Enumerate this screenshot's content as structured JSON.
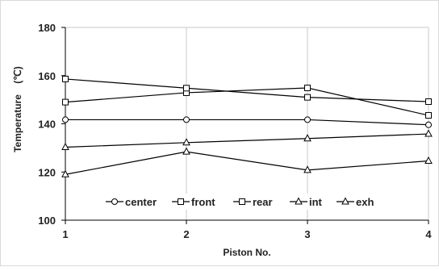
{
  "chart_data": {
    "type": "line",
    "title": "",
    "xlabel": "Piston No.",
    "ylabel": "Temperature",
    "ylabel_unit": "(℃)",
    "categories": [
      "1",
      "2",
      "3",
      "4"
    ],
    "ylim": [
      100,
      180
    ],
    "yticks": [
      "100",
      "120",
      "140",
      "160",
      "180"
    ],
    "grid": "vertical",
    "legend_position": "bottom-inside",
    "series": [
      {
        "name": "center",
        "marker": "circle",
        "values": [
          141.7,
          141.7,
          141.7,
          139.6
        ]
      },
      {
        "name": "front",
        "marker": "square",
        "values": [
          149.0,
          152.9,
          154.9,
          143.5
        ]
      },
      {
        "name": "rear",
        "marker": "square",
        "values": [
          158.6,
          154.8,
          151.0,
          149.2
        ]
      },
      {
        "name": "int",
        "marker": "triangle",
        "values": [
          130.3,
          132.2,
          133.9,
          135.8
        ]
      },
      {
        "name": "exh",
        "marker": "triangle",
        "values": [
          119.0,
          128.4,
          120.8,
          124.6
        ]
      }
    ],
    "colors": {
      "series_line": "#000000",
      "grid": "#c8c8c8",
      "axis": "#000000"
    }
  }
}
